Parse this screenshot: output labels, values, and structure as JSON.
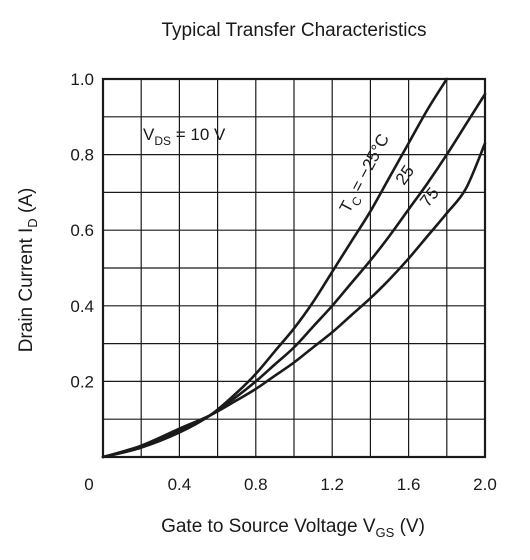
{
  "chart_data": {
    "type": "line",
    "title": "Typical Transfer Characteristics",
    "xlabel": {
      "main": "Gate to Source Voltage  V",
      "sub": "GS",
      "unit": "  (V)"
    },
    "ylabel": {
      "main": "Drain Current  I",
      "sub": "D",
      "unit": "  (A)"
    },
    "xlim": [
      0,
      2.0
    ],
    "ylim": [
      0,
      1.0
    ],
    "x_ticks": [
      0,
      0.4,
      0.8,
      1.2,
      1.6,
      2.0
    ],
    "x_tick_labels": [
      "0",
      "0.4",
      "0.8",
      "1.2",
      "1.6",
      "2.0"
    ],
    "y_ticks": [
      0.2,
      0.4,
      0.6,
      0.8,
      1.0
    ],
    "y_tick_labels": [
      "0.2",
      "0.4",
      "0.6",
      "0.8",
      "1.0"
    ],
    "grid": true,
    "grid_x_step": 0.2,
    "grid_y_step": 0.1,
    "condition": {
      "main": "V",
      "sub": "DS",
      "rest": " = 10 V"
    },
    "series": [
      {
        "label": "T C = −25°C",
        "label_main": "T",
        "label_sub": "C",
        "label_rest": " = −25°C",
        "x": [
          0,
          0.2,
          0.4,
          0.56,
          0.7,
          0.8,
          0.9,
          1.0,
          1.1,
          1.2,
          1.3,
          1.4,
          1.5,
          1.6,
          1.7,
          1.8
        ],
        "y": [
          0,
          0.025,
          0.065,
          0.11,
          0.17,
          0.22,
          0.28,
          0.34,
          0.41,
          0.49,
          0.57,
          0.65,
          0.74,
          0.83,
          0.92,
          1.0
        ]
      },
      {
        "label": "25",
        "label_main": "25",
        "label_sub": "",
        "label_rest": "",
        "x": [
          0,
          0.2,
          0.4,
          0.56,
          0.7,
          0.8,
          0.9,
          1.0,
          1.1,
          1.2,
          1.3,
          1.4,
          1.5,
          1.6,
          1.7,
          1.8,
          1.9,
          2.0
        ],
        "y": [
          0,
          0.025,
          0.07,
          0.11,
          0.16,
          0.2,
          0.245,
          0.29,
          0.345,
          0.4,
          0.46,
          0.52,
          0.585,
          0.655,
          0.725,
          0.8,
          0.88,
          0.96
        ]
      },
      {
        "label": "75",
        "label_main": "75",
        "label_sub": "",
        "label_rest": "",
        "x": [
          0,
          0.2,
          0.4,
          0.56,
          0.7,
          0.8,
          0.9,
          1.0,
          1.1,
          1.2,
          1.3,
          1.4,
          1.5,
          1.6,
          1.7,
          1.8,
          1.9,
          2.0
        ],
        "y": [
          0,
          0.03,
          0.075,
          0.11,
          0.15,
          0.18,
          0.215,
          0.25,
          0.29,
          0.33,
          0.375,
          0.42,
          0.47,
          0.525,
          0.585,
          0.645,
          0.71,
          0.83
        ]
      }
    ]
  }
}
